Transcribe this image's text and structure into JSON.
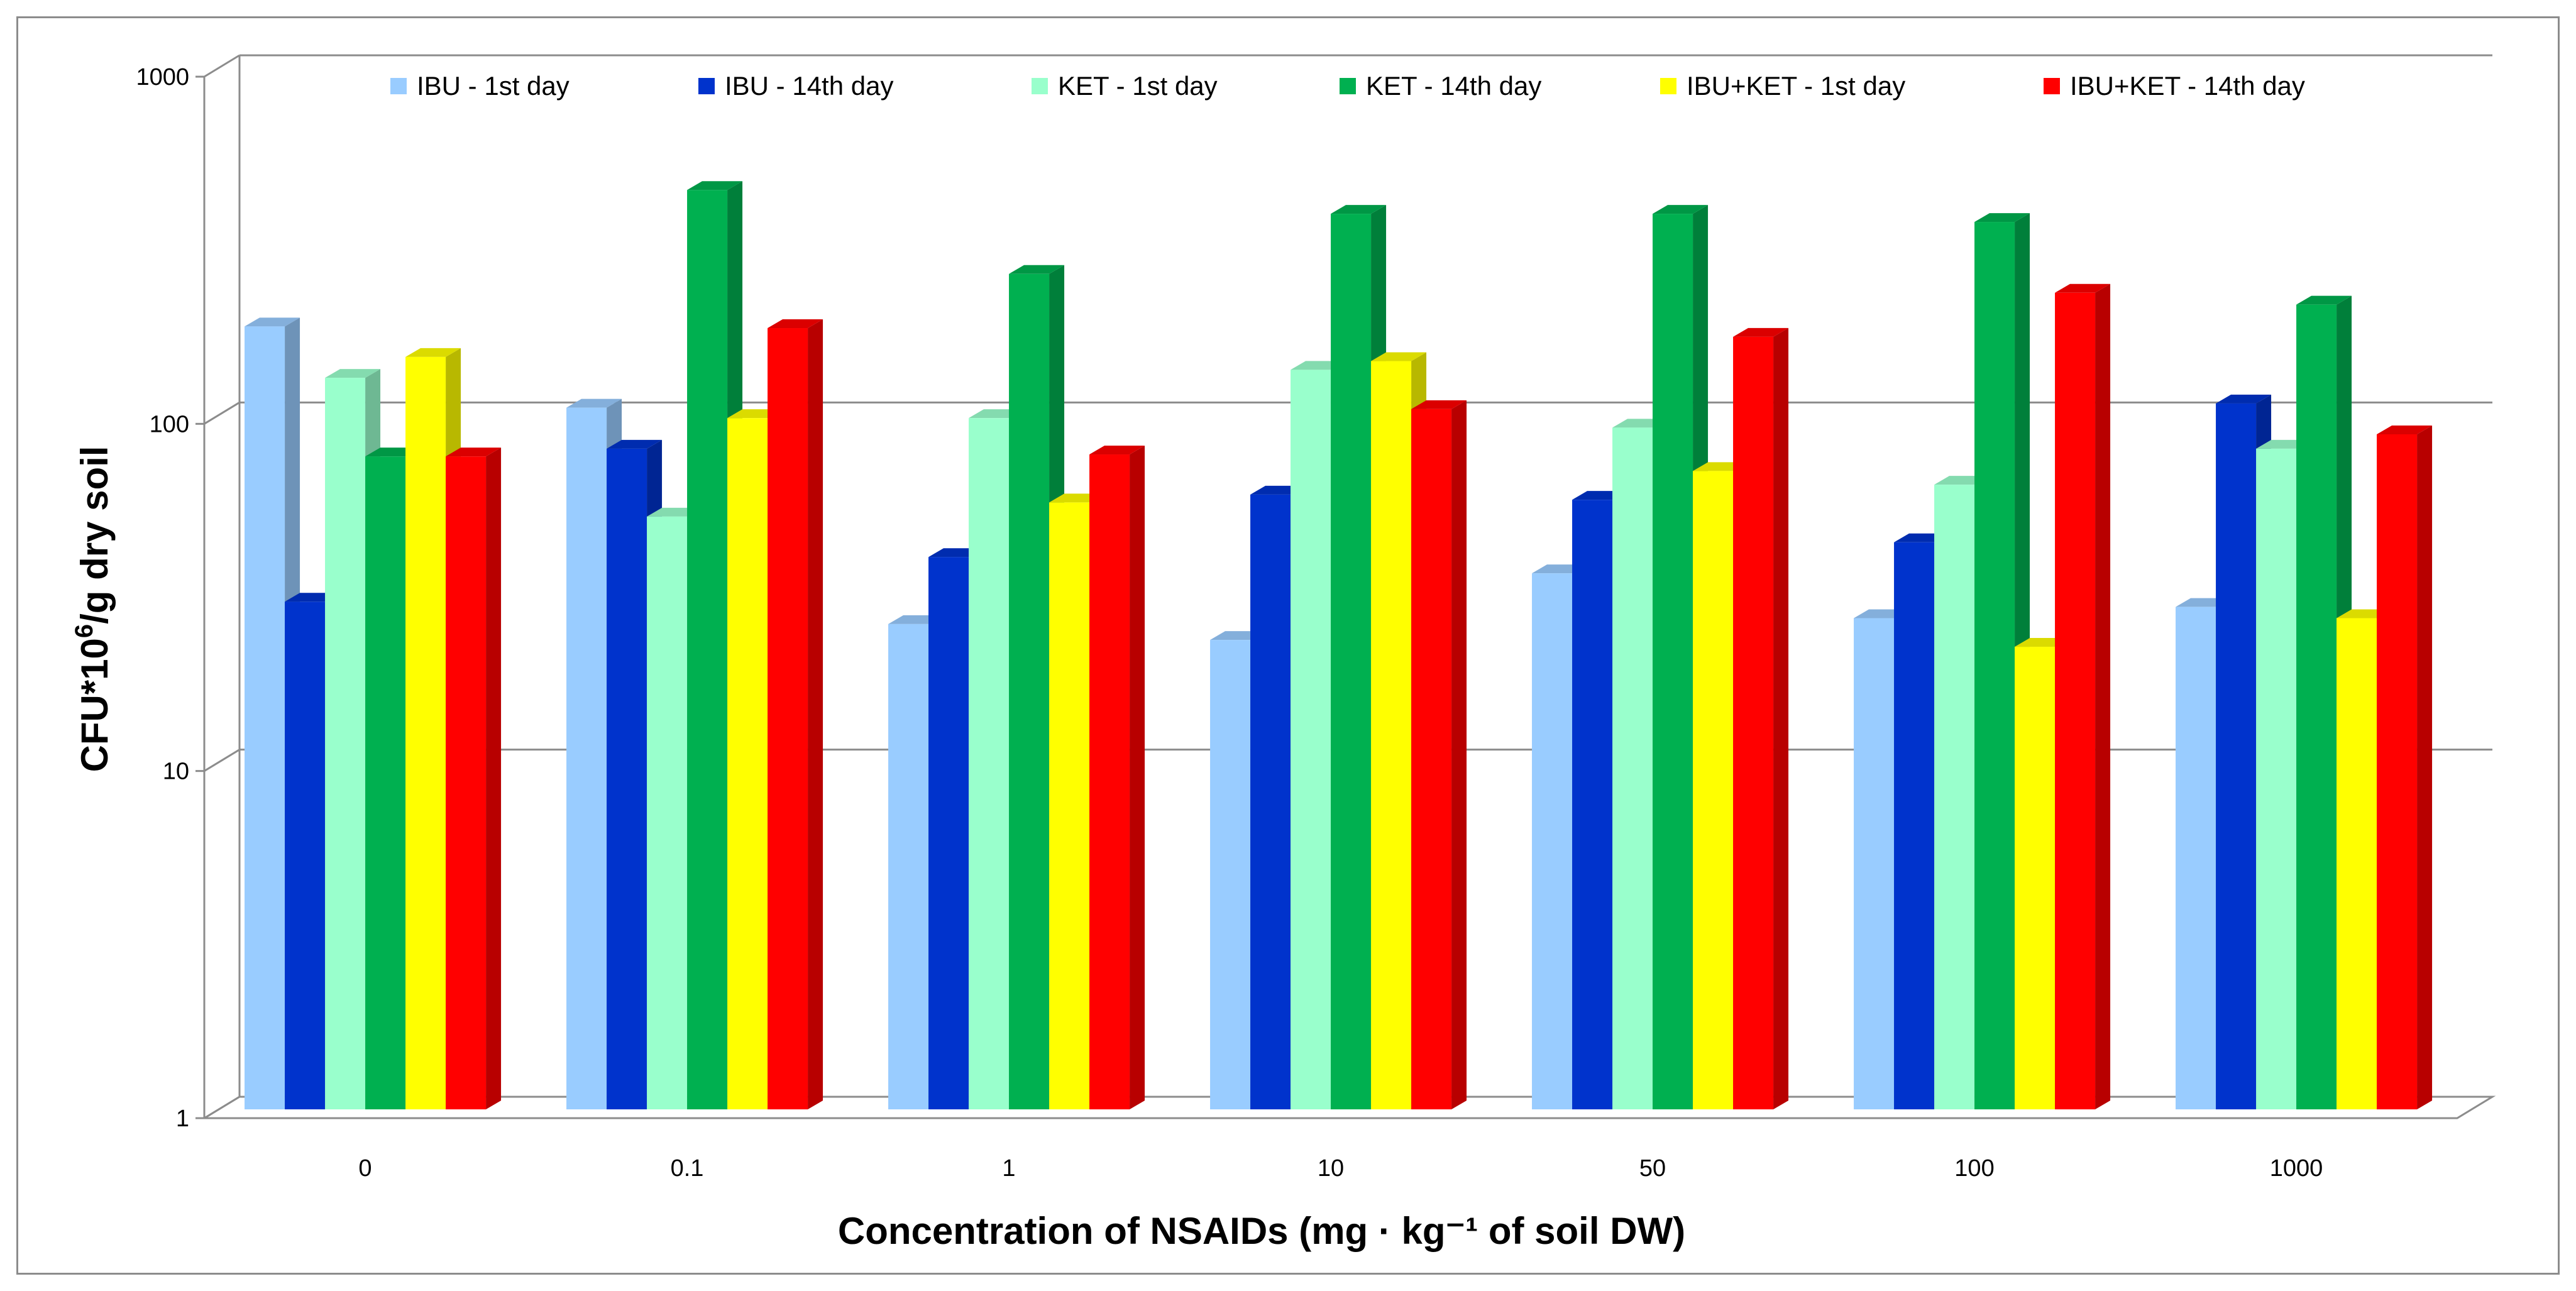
{
  "chart_data": {
    "type": "bar",
    "style": "3d-clustered",
    "title": "",
    "xlabel": "Concentration of NSAIDs (mg · kg⁻¹ of soil DW)",
    "ylabel": {
      "prefix": "CFU*10",
      "sup": "6",
      "suffix": "/g dry soil"
    },
    "yscale": "log",
    "ylim": [
      1,
      1000
    ],
    "yticks": [
      1,
      10,
      100,
      1000
    ],
    "grid": true,
    "legend_position": "top",
    "categories": [
      "0",
      "0.1",
      "1",
      "10",
      "50",
      "100",
      "1000"
    ],
    "series": [
      {
        "name": "IBU - 1st day",
        "color": "#99ccff",
        "values": [
          180,
          105,
          25,
          22.5,
          35,
          26,
          28
        ]
      },
      {
        "name": "IBU - 14th day",
        "color": "#0033cc",
        "values": [
          29,
          80,
          39,
          59,
          57,
          43,
          108
        ]
      },
      {
        "name": "KET - 1st day",
        "color": "#99ffcc",
        "values": [
          128,
          51,
          98,
          135,
          92,
          63,
          80
        ]
      },
      {
        "name": "KET - 14th day",
        "color": "#00b050",
        "values": [
          76,
          445,
          255,
          380,
          380,
          360,
          208
        ]
      },
      {
        "name": "IBU+KET - 1st day",
        "color": "#ffff00",
        "values": [
          147,
          98,
          56,
          143,
          69,
          21.5,
          26
        ]
      },
      {
        "name": "IBU+KET - 14th day",
        "color": "#ff0000",
        "values": [
          76,
          178,
          77,
          104,
          168,
          225,
          88
        ]
      }
    ]
  }
}
